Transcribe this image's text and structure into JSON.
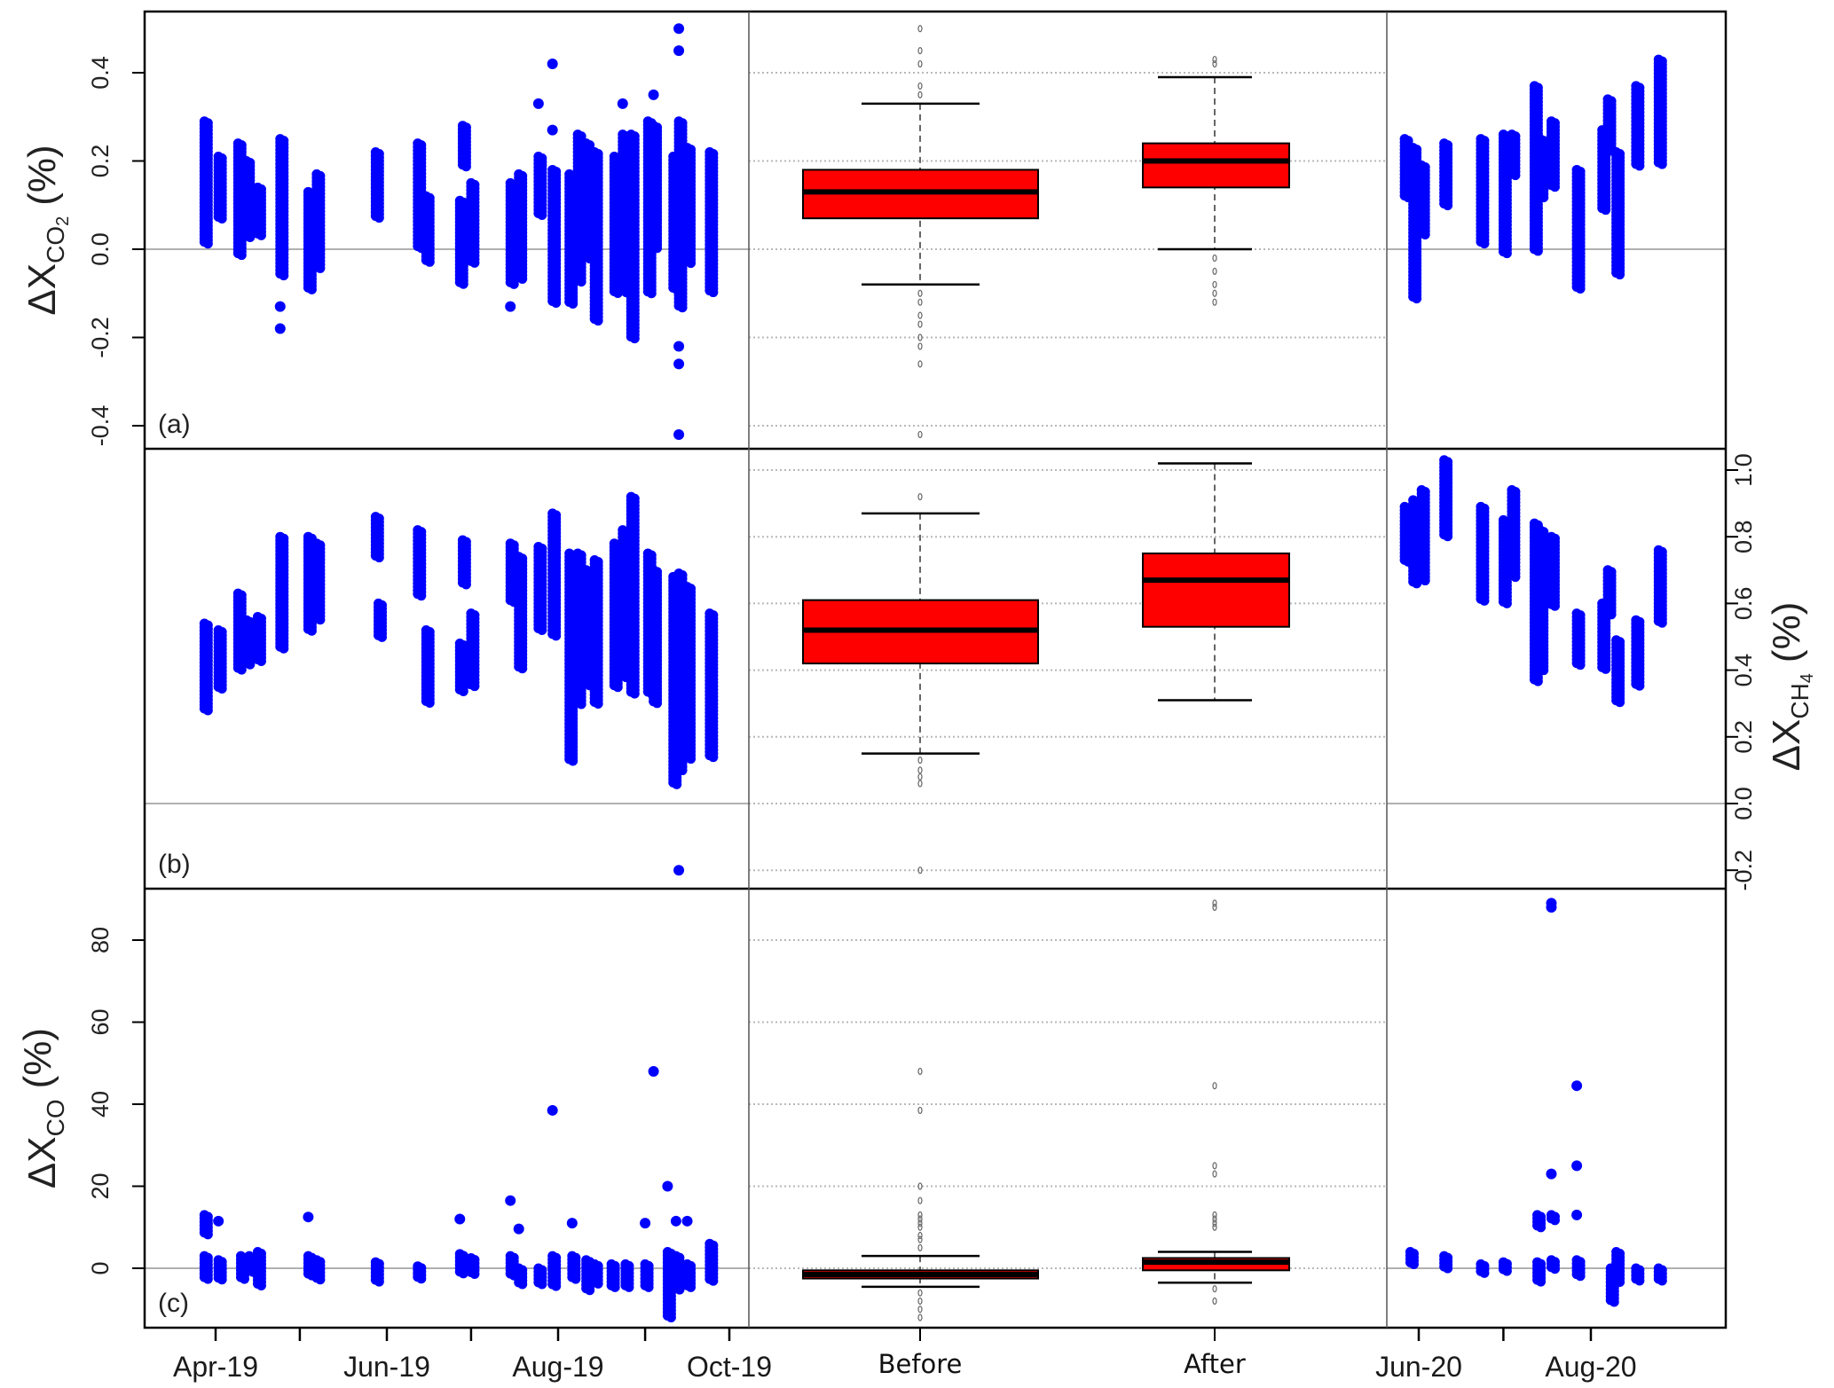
{
  "chart_data": {
    "type": "scatter+box",
    "colors": {
      "points": "#0000ff",
      "box_fill": "#ff0000",
      "zero_line": "#b0b0b0",
      "grid": "#b8b8b8"
    },
    "box_categories": [
      "Before",
      "After"
    ],
    "period1_ticks": [
      {
        "date": "2019-04-01",
        "label": "Apr-19"
      },
      {
        "date": "2019-05-01",
        "label": ""
      },
      {
        "date": "2019-06-01",
        "label": "Jun-19"
      },
      {
        "date": "2019-07-01",
        "label": ""
      },
      {
        "date": "2019-08-01",
        "label": "Aug-19"
      },
      {
        "date": "2019-09-01",
        "label": ""
      },
      {
        "date": "2019-10-01",
        "label": "Oct-19"
      }
    ],
    "period2_ticks": [
      {
        "date": "2020-06-01",
        "label": "Jun-20"
      },
      {
        "date": "2020-07-01",
        "label": ""
      },
      {
        "date": "2020-08-01",
        "label": "Aug-20"
      }
    ],
    "panels": [
      {
        "id": "a",
        "label": "(a)",
        "ylabel": {
          "prefix": "ΔX",
          "sub": "CO",
          "subsub": "2",
          "suffix": "(%)"
        },
        "axis_side": "left",
        "ylim": [
          -0.45,
          0.54
        ],
        "ticks": [
          "-0.4",
          "-0.2",
          "0.0",
          "0.2",
          "0.4"
        ],
        "strips": [
          [
            "2019-03-28",
            0.01,
            0.29
          ],
          [
            "2019-04-02",
            0.07,
            0.21
          ],
          [
            "2019-04-09",
            -0.01,
            0.24
          ],
          [
            "2019-04-12",
            0.03,
            0.2
          ],
          [
            "2019-04-16",
            0.03,
            0.14
          ],
          [
            "2019-04-24",
            -0.06,
            0.25
          ],
          [
            "2019-05-04",
            -0.09,
            0.13
          ],
          [
            "2019-05-07",
            -0.04,
            0.17
          ],
          [
            "2019-05-28",
            0.07,
            0.22
          ],
          [
            "2019-06-12",
            0.0,
            0.24
          ],
          [
            "2019-06-15",
            -0.03,
            0.12
          ],
          [
            "2019-06-27",
            -0.08,
            0.11
          ],
          [
            "2019-06-28",
            0.19,
            0.28
          ],
          [
            "2019-07-01",
            -0.03,
            0.15
          ],
          [
            "2019-07-15",
            -0.08,
            0.15
          ],
          [
            "2019-07-18",
            -0.07,
            0.17
          ],
          [
            "2019-07-25",
            0.08,
            0.21
          ],
          [
            "2019-07-30",
            -0.12,
            0.18
          ],
          [
            "2019-08-05",
            -0.12,
            0.17
          ],
          [
            "2019-08-08",
            -0.07,
            0.26
          ],
          [
            "2019-08-11",
            -0.02,
            0.24
          ],
          [
            "2019-08-14",
            -0.16,
            0.22
          ],
          [
            "2019-08-21",
            -0.1,
            0.21
          ],
          [
            "2019-08-24",
            -0.1,
            0.26
          ],
          [
            "2019-08-27",
            -0.2,
            0.26
          ],
          [
            "2019-09-02",
            -0.1,
            0.29
          ],
          [
            "2019-09-04",
            0.0,
            0.28
          ],
          [
            "2019-09-11",
            -0.09,
            0.21
          ],
          [
            "2019-09-13",
            -0.13,
            0.29
          ],
          [
            "2019-09-16",
            -0.03,
            0.23
          ],
          [
            "2019-09-24",
            -0.1,
            0.22
          ],
          [
            "2020-05-27",
            0.115,
            0.25
          ],
          [
            "2020-05-30",
            -0.115,
            0.23
          ],
          [
            "2020-06-02",
            0.03,
            0.19
          ],
          [
            "2020-06-10",
            0.1,
            0.24
          ],
          [
            "2020-06-23",
            0.01,
            0.25
          ],
          [
            "2020-07-01",
            -0.01,
            0.26
          ],
          [
            "2020-07-04",
            0.17,
            0.26
          ],
          [
            "2020-07-12",
            0.0,
            0.37
          ],
          [
            "2020-07-14",
            0.12,
            0.25
          ],
          [
            "2020-07-18",
            0.14,
            0.29
          ],
          [
            "2020-07-27",
            -0.09,
            0.18
          ],
          [
            "2020-08-05",
            0.09,
            0.27
          ],
          [
            "2020-08-07",
            0.22,
            0.34
          ],
          [
            "2020-08-10",
            -0.06,
            0.22
          ],
          [
            "2020-08-17",
            0.19,
            0.37
          ],
          [
            "2020-08-25",
            0.19,
            0.43
          ]
        ],
        "points": [
          [
            "2019-04-24",
            -0.13
          ],
          [
            "2019-04-24",
            -0.18
          ],
          [
            "2019-07-15",
            -0.13
          ],
          [
            "2019-07-25",
            0.33
          ],
          [
            "2019-07-30",
            0.27
          ],
          [
            "2019-07-30",
            0.42
          ],
          [
            "2019-08-24",
            0.33
          ],
          [
            "2019-09-04",
            0.35
          ],
          [
            "2019-09-13",
            -0.22
          ],
          [
            "2019-09-13",
            -0.26
          ],
          [
            "2019-09-13",
            0.45
          ],
          [
            "2019-09-13",
            0.5
          ],
          [
            "2019-09-13",
            -0.42
          ]
        ],
        "boxes": {
          "Before": {
            "whisker_low": -0.08,
            "q1": 0.07,
            "median": 0.13,
            "q3": 0.18,
            "whisker_high": 0.33,
            "outliers": [
              0.35,
              0.37,
              0.42,
              0.45,
              0.5,
              -0.1,
              -0.12,
              -0.15,
              -0.17,
              -0.2,
              -0.22,
              -0.26,
              -0.42
            ]
          },
          "After": {
            "whisker_low": 0.0,
            "q1": 0.14,
            "median": 0.2,
            "q3": 0.24,
            "whisker_high": 0.39,
            "outliers": [
              0.42,
              0.43,
              -0.02,
              -0.05,
              -0.08,
              -0.1,
              -0.12
            ]
          }
        }
      },
      {
        "id": "b",
        "label": "(b)",
        "ylabel": {
          "prefix": "ΔX",
          "sub": "CH",
          "subsub": "4",
          "suffix": "(%)"
        },
        "axis_side": "right",
        "ylim": [
          -0.26,
          1.06
        ],
        "ticks": [
          "-0.2",
          "0.0",
          "0.2",
          "0.4",
          "0.6",
          "0.8",
          "1.0"
        ],
        "strips": [
          [
            "2019-03-28",
            0.28,
            0.54
          ],
          [
            "2019-04-02",
            0.35,
            0.52
          ],
          [
            "2019-04-09",
            0.4,
            0.63
          ],
          [
            "2019-04-12",
            0.42,
            0.55
          ],
          [
            "2019-04-16",
            0.43,
            0.56
          ],
          [
            "2019-04-24",
            0.47,
            0.8
          ],
          [
            "2019-05-04",
            0.52,
            0.8
          ],
          [
            "2019-05-07",
            0.55,
            0.78
          ],
          [
            "2019-05-28",
            0.74,
            0.86
          ],
          [
            "2019-05-29",
            0.5,
            0.6
          ],
          [
            "2019-06-12",
            0.62,
            0.82
          ],
          [
            "2019-06-15",
            0.3,
            0.52
          ],
          [
            "2019-06-27",
            0.34,
            0.48
          ],
          [
            "2019-06-28",
            0.66,
            0.79
          ],
          [
            "2019-07-01",
            0.35,
            0.57
          ],
          [
            "2019-07-15",
            0.6,
            0.78
          ],
          [
            "2019-07-18",
            0.4,
            0.74
          ],
          [
            "2019-07-25",
            0.52,
            0.77
          ],
          [
            "2019-07-30",
            0.5,
            0.87
          ],
          [
            "2019-08-05",
            0.13,
            0.75
          ],
          [
            "2019-08-08",
            0.3,
            0.75
          ],
          [
            "2019-08-11",
            0.35,
            0.7
          ],
          [
            "2019-08-14",
            0.3,
            0.73
          ],
          [
            "2019-08-21",
            0.35,
            0.78
          ],
          [
            "2019-08-24",
            0.38,
            0.82
          ],
          [
            "2019-08-27",
            0.33,
            0.92
          ],
          [
            "2019-09-02",
            0.33,
            0.75
          ],
          [
            "2019-09-04",
            0.3,
            0.7
          ],
          [
            "2019-09-11",
            0.06,
            0.68
          ],
          [
            "2019-09-13",
            0.1,
            0.69
          ],
          [
            "2019-09-16",
            0.13,
            0.65
          ],
          [
            "2019-09-24",
            0.14,
            0.57
          ],
          [
            "2020-05-27",
            0.73,
            0.89
          ],
          [
            "2020-05-30",
            0.66,
            0.91
          ],
          [
            "2020-06-02",
            0.67,
            0.94
          ],
          [
            "2020-06-10",
            0.8,
            1.03
          ],
          [
            "2020-06-23",
            0.61,
            0.89
          ],
          [
            "2020-07-01",
            0.6,
            0.85
          ],
          [
            "2020-07-04",
            0.68,
            0.94
          ],
          [
            "2020-07-12",
            0.37,
            0.84
          ],
          [
            "2020-07-14",
            0.4,
            0.82
          ],
          [
            "2020-07-18",
            0.59,
            0.8
          ],
          [
            "2020-07-27",
            0.42,
            0.57
          ],
          [
            "2020-08-05",
            0.4,
            0.6
          ],
          [
            "2020-08-07",
            0.57,
            0.7
          ],
          [
            "2020-08-10",
            0.3,
            0.49
          ],
          [
            "2020-08-17",
            0.35,
            0.55
          ],
          [
            "2020-08-25",
            0.54,
            0.76
          ]
        ],
        "points": [
          [
            "2019-09-13",
            -0.2
          ]
        ],
        "boxes": {
          "Before": {
            "whisker_low": 0.15,
            "q1": 0.42,
            "median": 0.52,
            "q3": 0.61,
            "whisker_high": 0.87,
            "outliers": [
              0.92,
              0.13,
              0.1,
              0.08,
              0.06,
              -0.2
            ]
          },
          "After": {
            "whisker_low": 0.31,
            "q1": 0.53,
            "median": 0.67,
            "q3": 0.75,
            "whisker_high": 1.02,
            "outliers": []
          }
        }
      },
      {
        "id": "c",
        "label": "(c)",
        "ylabel": {
          "prefix": "ΔX",
          "sub": "CO",
          "subsub": "",
          "suffix": "(%)"
        },
        "axis_side": "left",
        "ylim": [
          -14,
          92
        ],
        "ticks": [
          "0",
          "20",
          "40",
          "60",
          "80"
        ],
        "strips": [
          [
            "2019-03-28",
            -3,
            3
          ],
          [
            "2019-03-28",
            8,
            13
          ],
          [
            "2019-04-02",
            -2.5,
            2
          ],
          [
            "2019-04-10",
            -3,
            3
          ],
          [
            "2019-04-13",
            -1,
            3
          ],
          [
            "2019-04-16",
            -4,
            4
          ],
          [
            "2019-05-04",
            -2,
            3
          ],
          [
            "2019-05-07",
            -3,
            2
          ],
          [
            "2019-05-28",
            -3,
            1.5
          ],
          [
            "2019-06-12",
            -2.5,
            0.5
          ],
          [
            "2019-06-27",
            -1.5,
            3.5
          ],
          [
            "2019-07-01",
            -1,
            2.5
          ],
          [
            "2019-07-15",
            -1.5,
            3
          ],
          [
            "2019-07-18",
            -4,
            0
          ],
          [
            "2019-07-25",
            -4,
            0
          ],
          [
            "2019-07-30",
            -4,
            3
          ],
          [
            "2019-08-06",
            -3,
            3
          ],
          [
            "2019-08-11",
            -5,
            2
          ],
          [
            "2019-08-14",
            -4,
            1
          ],
          [
            "2019-08-20",
            -5,
            1
          ],
          [
            "2019-08-25",
            -5,
            1
          ],
          [
            "2019-09-01",
            -5,
            1
          ],
          [
            "2019-09-09",
            -12,
            4
          ],
          [
            "2019-09-12",
            -5,
            3
          ],
          [
            "2019-09-16",
            -5,
            1
          ],
          [
            "2019-09-24",
            -3,
            6
          ],
          [
            "2020-05-29",
            1,
            4
          ],
          [
            "2020-06-10",
            0,
            3
          ],
          [
            "2020-06-23",
            -1,
            1
          ],
          [
            "2020-07-01",
            -1,
            1.5
          ],
          [
            "2020-07-13",
            -3,
            1.5
          ],
          [
            "2020-07-13",
            10,
            13
          ],
          [
            "2020-07-18",
            0,
            2
          ],
          [
            "2020-07-18",
            12,
            13
          ],
          [
            "2020-07-27",
            -2,
            2
          ],
          [
            "2020-08-08",
            -8,
            0
          ],
          [
            "2020-08-10",
            -3,
            4
          ],
          [
            "2020-08-17",
            -3,
            0
          ],
          [
            "2020-08-25",
            -3,
            0
          ]
        ],
        "points": [
          [
            "2019-04-02",
            11.5
          ],
          [
            "2019-05-04",
            12.5
          ],
          [
            "2019-06-27",
            12
          ],
          [
            "2019-07-15",
            16.5
          ],
          [
            "2019-07-18",
            9.6
          ],
          [
            "2019-07-30",
            38.5
          ],
          [
            "2019-08-06",
            11
          ],
          [
            "2019-09-01",
            11
          ],
          [
            "2019-09-04",
            48
          ],
          [
            "2019-09-09",
            20
          ],
          [
            "2019-09-12",
            11.5
          ],
          [
            "2019-09-16",
            11.5
          ],
          [
            "2020-07-18",
            23
          ],
          [
            "2020-07-18",
            88
          ],
          [
            "2020-07-18",
            89
          ],
          [
            "2020-07-27",
            13
          ],
          [
            "2020-07-27",
            25
          ],
          [
            "2020-07-27",
            44.5
          ]
        ],
        "boxes": {
          "Before": {
            "whisker_low": -4.5,
            "q1": -2.5,
            "median": -1.5,
            "q3": -0.5,
            "whisker_high": 3,
            "outliers": [
              5,
              7,
              8,
              10,
              11,
              12,
              13,
              16.5,
              20,
              38.5,
              48,
              -6,
              -8,
              -10,
              -12
            ]
          },
          "After": {
            "whisker_low": -3.5,
            "q1": -0.5,
            "median": 1.5,
            "q3": 2.5,
            "whisker_high": 4,
            "outliers": [
              88,
              89,
              44.5,
              23,
              25,
              10,
              11,
              12,
              13,
              -5,
              -8
            ]
          }
        }
      }
    ]
  }
}
